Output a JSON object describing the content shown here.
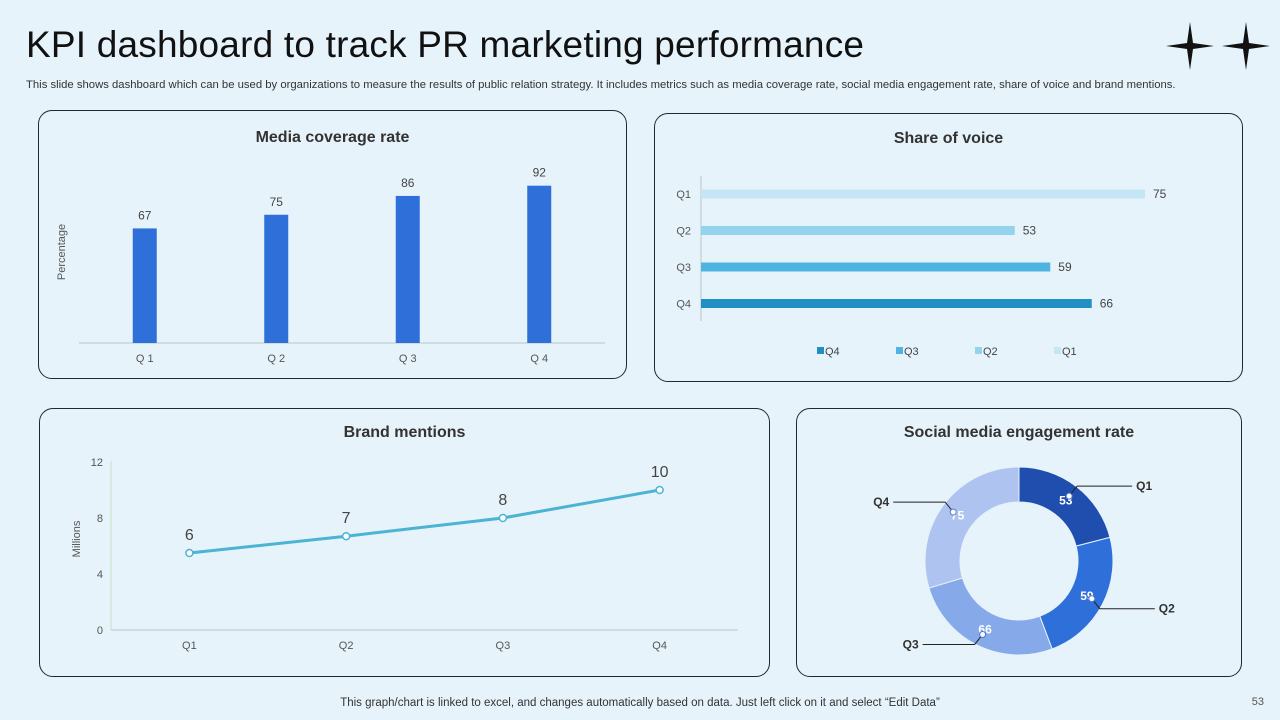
{
  "header": {
    "title": "KPI dashboard to track PR marketing performance",
    "subtitle": "This slide shows dashboard which can be used by organizations to measure the results of public relation strategy. It includes metrics such as media coverage rate, social media engagement rate, share of voice and brand mentions."
  },
  "footer": {
    "note": "This graph/chart is linked to excel, and changes automatically based on data. Just left click on it and select “Edit Data”",
    "page_number": "53"
  },
  "colors": {
    "bar_blue": "#2f6fda",
    "line": "#4bb3d4",
    "sov": [
      "#c5e6f5",
      "#93d3ee",
      "#4fb4e1",
      "#1f8fc4"
    ],
    "donut": [
      "#1f4eaf",
      "#2f6fda",
      "#86a9ea",
      "#aec3f0"
    ]
  },
  "chart_data": [
    {
      "id": "media",
      "type": "bar",
      "title": "Media coverage rate",
      "categories": [
        "Q 1",
        "Q 2",
        "Q 3",
        "Q 4"
      ],
      "values": [
        67,
        75,
        86,
        92
      ],
      "xlabel": "",
      "ylabel": "Percentage",
      "ylim": [
        0,
        100
      ],
      "grid": false
    },
    {
      "id": "sov",
      "type": "bar",
      "orientation": "horizontal",
      "title": "Share of voice",
      "categories": [
        "Q1",
        "Q2",
        "Q3",
        "Q4"
      ],
      "values": [
        75,
        53,
        59,
        66
      ],
      "xlim": [
        0,
        100
      ],
      "legend": [
        "Q4",
        "Q3",
        "Q2",
        "Q1"
      ],
      "legend_position": "bottom"
    },
    {
      "id": "brand",
      "type": "line",
      "title": "Brand mentions",
      "categories": [
        "Q1",
        "Q2",
        "Q3",
        "Q4"
      ],
      "values": [
        5.5,
        6.7,
        8,
        10
      ],
      "labels": [
        "6",
        "7",
        "8",
        "10"
      ],
      "ylabel": "Millions",
      "ylim": [
        0,
        12
      ],
      "yticks": [
        "0",
        "4",
        "8",
        "12"
      ]
    },
    {
      "id": "social",
      "type": "pie",
      "variant": "donut",
      "title": "Social media engagement rate",
      "categories": [
        "Q1",
        "Q2",
        "Q3",
        "Q4"
      ],
      "values": [
        53,
        59,
        66,
        75
      ]
    }
  ]
}
